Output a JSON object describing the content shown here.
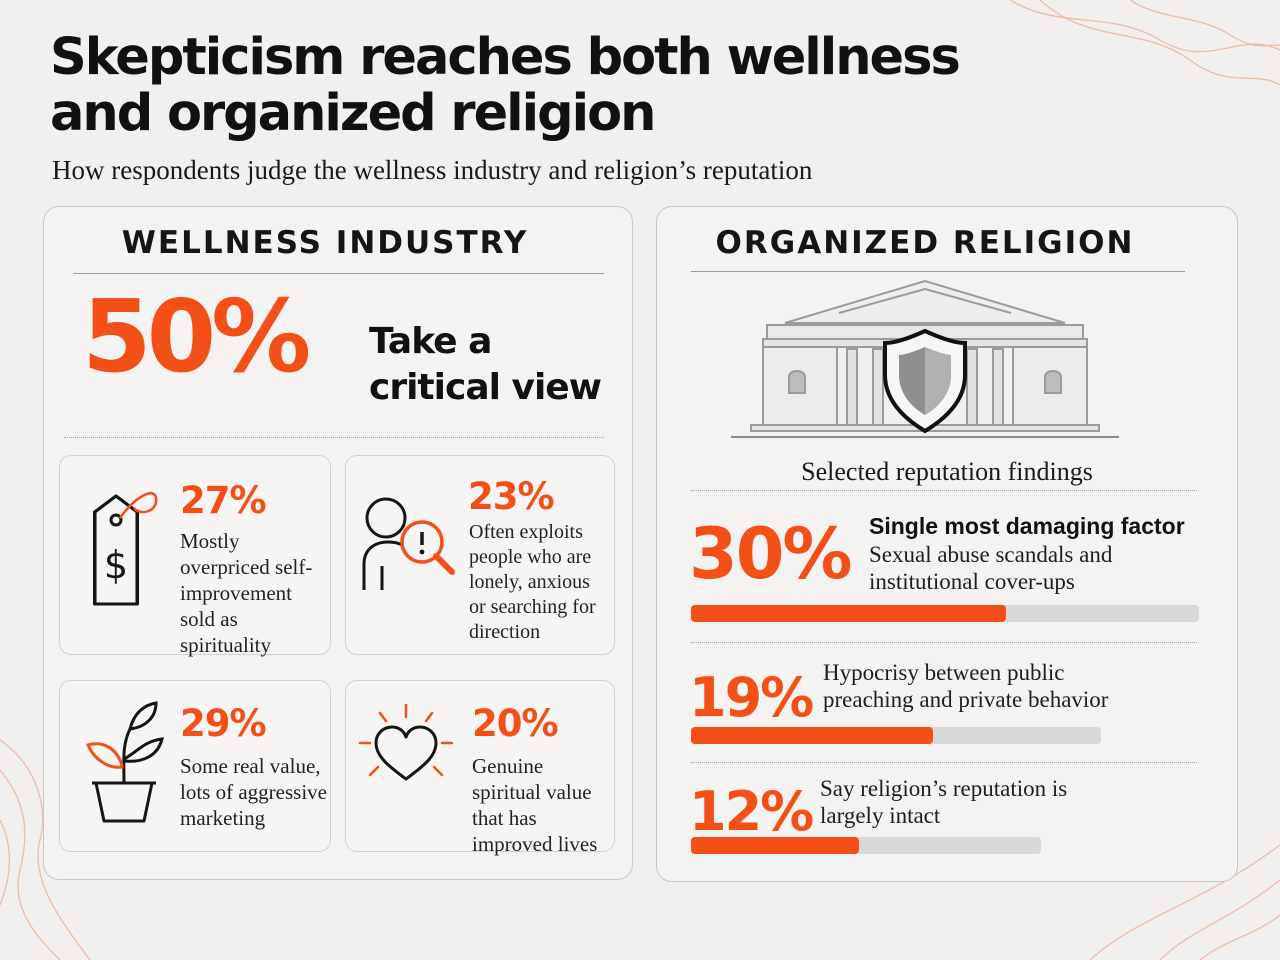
{
  "header": {
    "title": "Skepticism reaches both wellness and organized religion",
    "subtitle": "How respondents judge the wellness industry and religion’s reputation"
  },
  "wellness": {
    "heading": "WELLNESS INDUSTRY",
    "headline_value": "50%",
    "headline_label": "Take a critical view",
    "cards": [
      {
        "value": "27%",
        "text": "Mostly overpriced self-improvement sold as spirituality",
        "icon": "price-tag-icon"
      },
      {
        "value": "23%",
        "text": "Often exploits people who are lonely, anxious or searching for direction",
        "icon": "person-magnifier-icon"
      },
      {
        "value": "29%",
        "text": "Some real value, lots of aggressive marketing",
        "icon": "potted-plant-icon"
      },
      {
        "value": "20%",
        "text": "Genuine spiritual value that has improved lives",
        "icon": "radiant-heart-icon"
      }
    ]
  },
  "religion": {
    "heading": "ORGANIZED RELIGION",
    "icon": "temple-shield-icon",
    "findings_heading": "Selected reputation findings",
    "findings": [
      {
        "value": "30%",
        "bold_label": "Single most damaging factor",
        "text": "Sexual abuse scandals and institutional cover-ups",
        "fraction": 0.62
      },
      {
        "value": "19%",
        "bold_label": "",
        "text": "Hypocrisy between public preaching and private behavior",
        "fraction": 0.59
      },
      {
        "value": "12%",
        "bold_label": "",
        "text": "Say religion’s reputation is largely intact",
        "fraction": 0.48
      }
    ]
  },
  "colors": {
    "accent": "#f24f19",
    "background": "#f1f0ee",
    "track": "#d9d8d6"
  }
}
